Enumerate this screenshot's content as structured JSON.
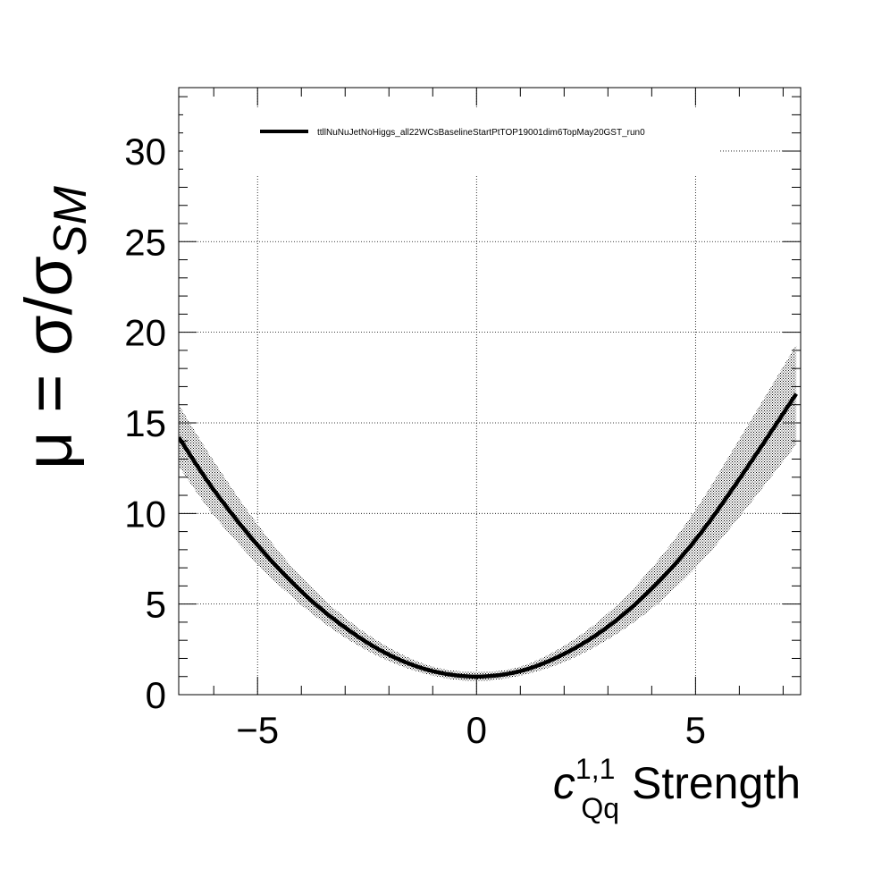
{
  "chart_data": {
    "type": "line",
    "legend": {
      "placement": "top",
      "entries": [
        "ttllNuNuJetNoHiggs_all22WCsBaselineStartPtTOP19001dim6TopMay20GST_run0"
      ]
    },
    "ylabel": {
      "base": "μ = σ/σ",
      "sub": "SM"
    },
    "xlabel": {
      "base": "c",
      "sub": "Qq",
      "sup": "1,1",
      "rest": " Strength"
    },
    "xlim": [
      -6.8,
      7.4
    ],
    "ylim": [
      0,
      33.5
    ],
    "grid": true,
    "x_ticks": [
      {
        "value": -5,
        "label": "−5"
      },
      {
        "value": 0,
        "label": "0"
      },
      {
        "value": 5,
        "label": "5"
      }
    ],
    "y_ticks": [
      {
        "value": 0,
        "label": "0"
      },
      {
        "value": 5,
        "label": "5"
      },
      {
        "value": 10,
        "label": "10"
      },
      {
        "value": 15,
        "label": "15"
      },
      {
        "value": 20,
        "label": "20"
      },
      {
        "value": 25,
        "label": "25"
      },
      {
        "value": 30,
        "label": "30"
      }
    ],
    "series": [
      {
        "name": "ttllNuNuJetNoHiggs_all22WCsBaselineStartPtTOP19001dim6TopMay20GST_run0",
        "color": "#000000",
        "x": [
          -6.8,
          -6.0,
          -5.0,
          -4.0,
          -3.0,
          -2.0,
          -1.0,
          0.0,
          1.0,
          2.0,
          3.0,
          4.0,
          5.0,
          6.0,
          7.3
        ],
        "y": [
          14.2,
          11.3,
          8.25,
          5.7,
          3.7,
          2.2,
          1.3,
          1.0,
          1.3,
          2.25,
          3.75,
          5.85,
          8.55,
          11.9,
          16.6
        ],
        "band_low": [
          12.6,
          9.9,
          7.2,
          4.95,
          3.15,
          1.85,
          1.05,
          0.75,
          1.05,
          1.8,
          3.05,
          4.75,
          7.0,
          9.8,
          13.8
        ],
        "band_high": [
          16.0,
          12.9,
          9.4,
          6.5,
          4.25,
          2.6,
          1.55,
          1.25,
          1.55,
          2.7,
          4.5,
          7.0,
          10.2,
          14.1,
          19.3
        ]
      }
    ]
  }
}
